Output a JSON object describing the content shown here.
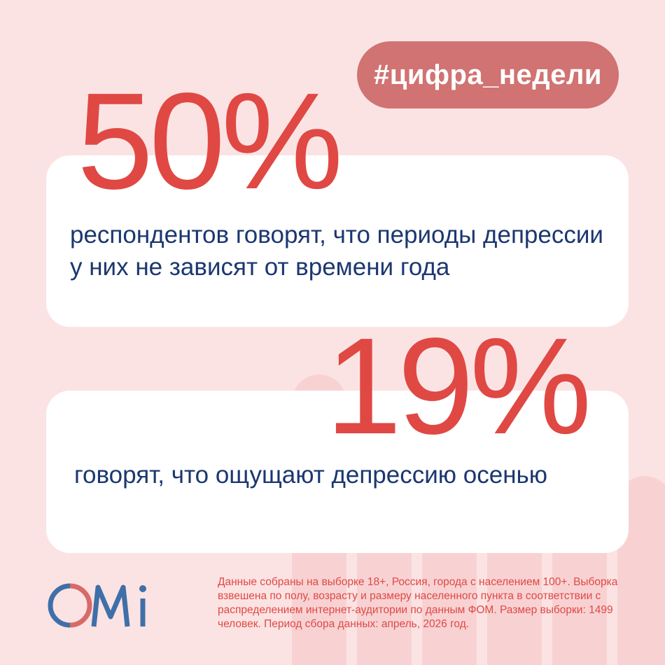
{
  "hashtag": "#цифра_недели",
  "stats": [
    {
      "value": "50%",
      "description": "респондентов говорят, что периоды депрессии у них не зависят от времени года"
    },
    {
      "value": "19%",
      "description": "говорят, что ощущают депрессию осенью"
    }
  ],
  "logo": {
    "brand": "OMI",
    "icon": "omi-logo-icon"
  },
  "footnote": "Данные собраны на выборке 18+, Россия, города с населением 100+. Выборка взвешена по полу, возрасту и размеру населенного пункта в соответствии с распределением интернет-аудитории по данным ФОМ. Размер выборки: 1499 человек. Период сбора данных: апрель, 2026 год.",
  "colors": {
    "background": "#fbe3e3",
    "accent": "#e04844",
    "text": "#1b3770",
    "hashtag_bg": "#d07372"
  }
}
